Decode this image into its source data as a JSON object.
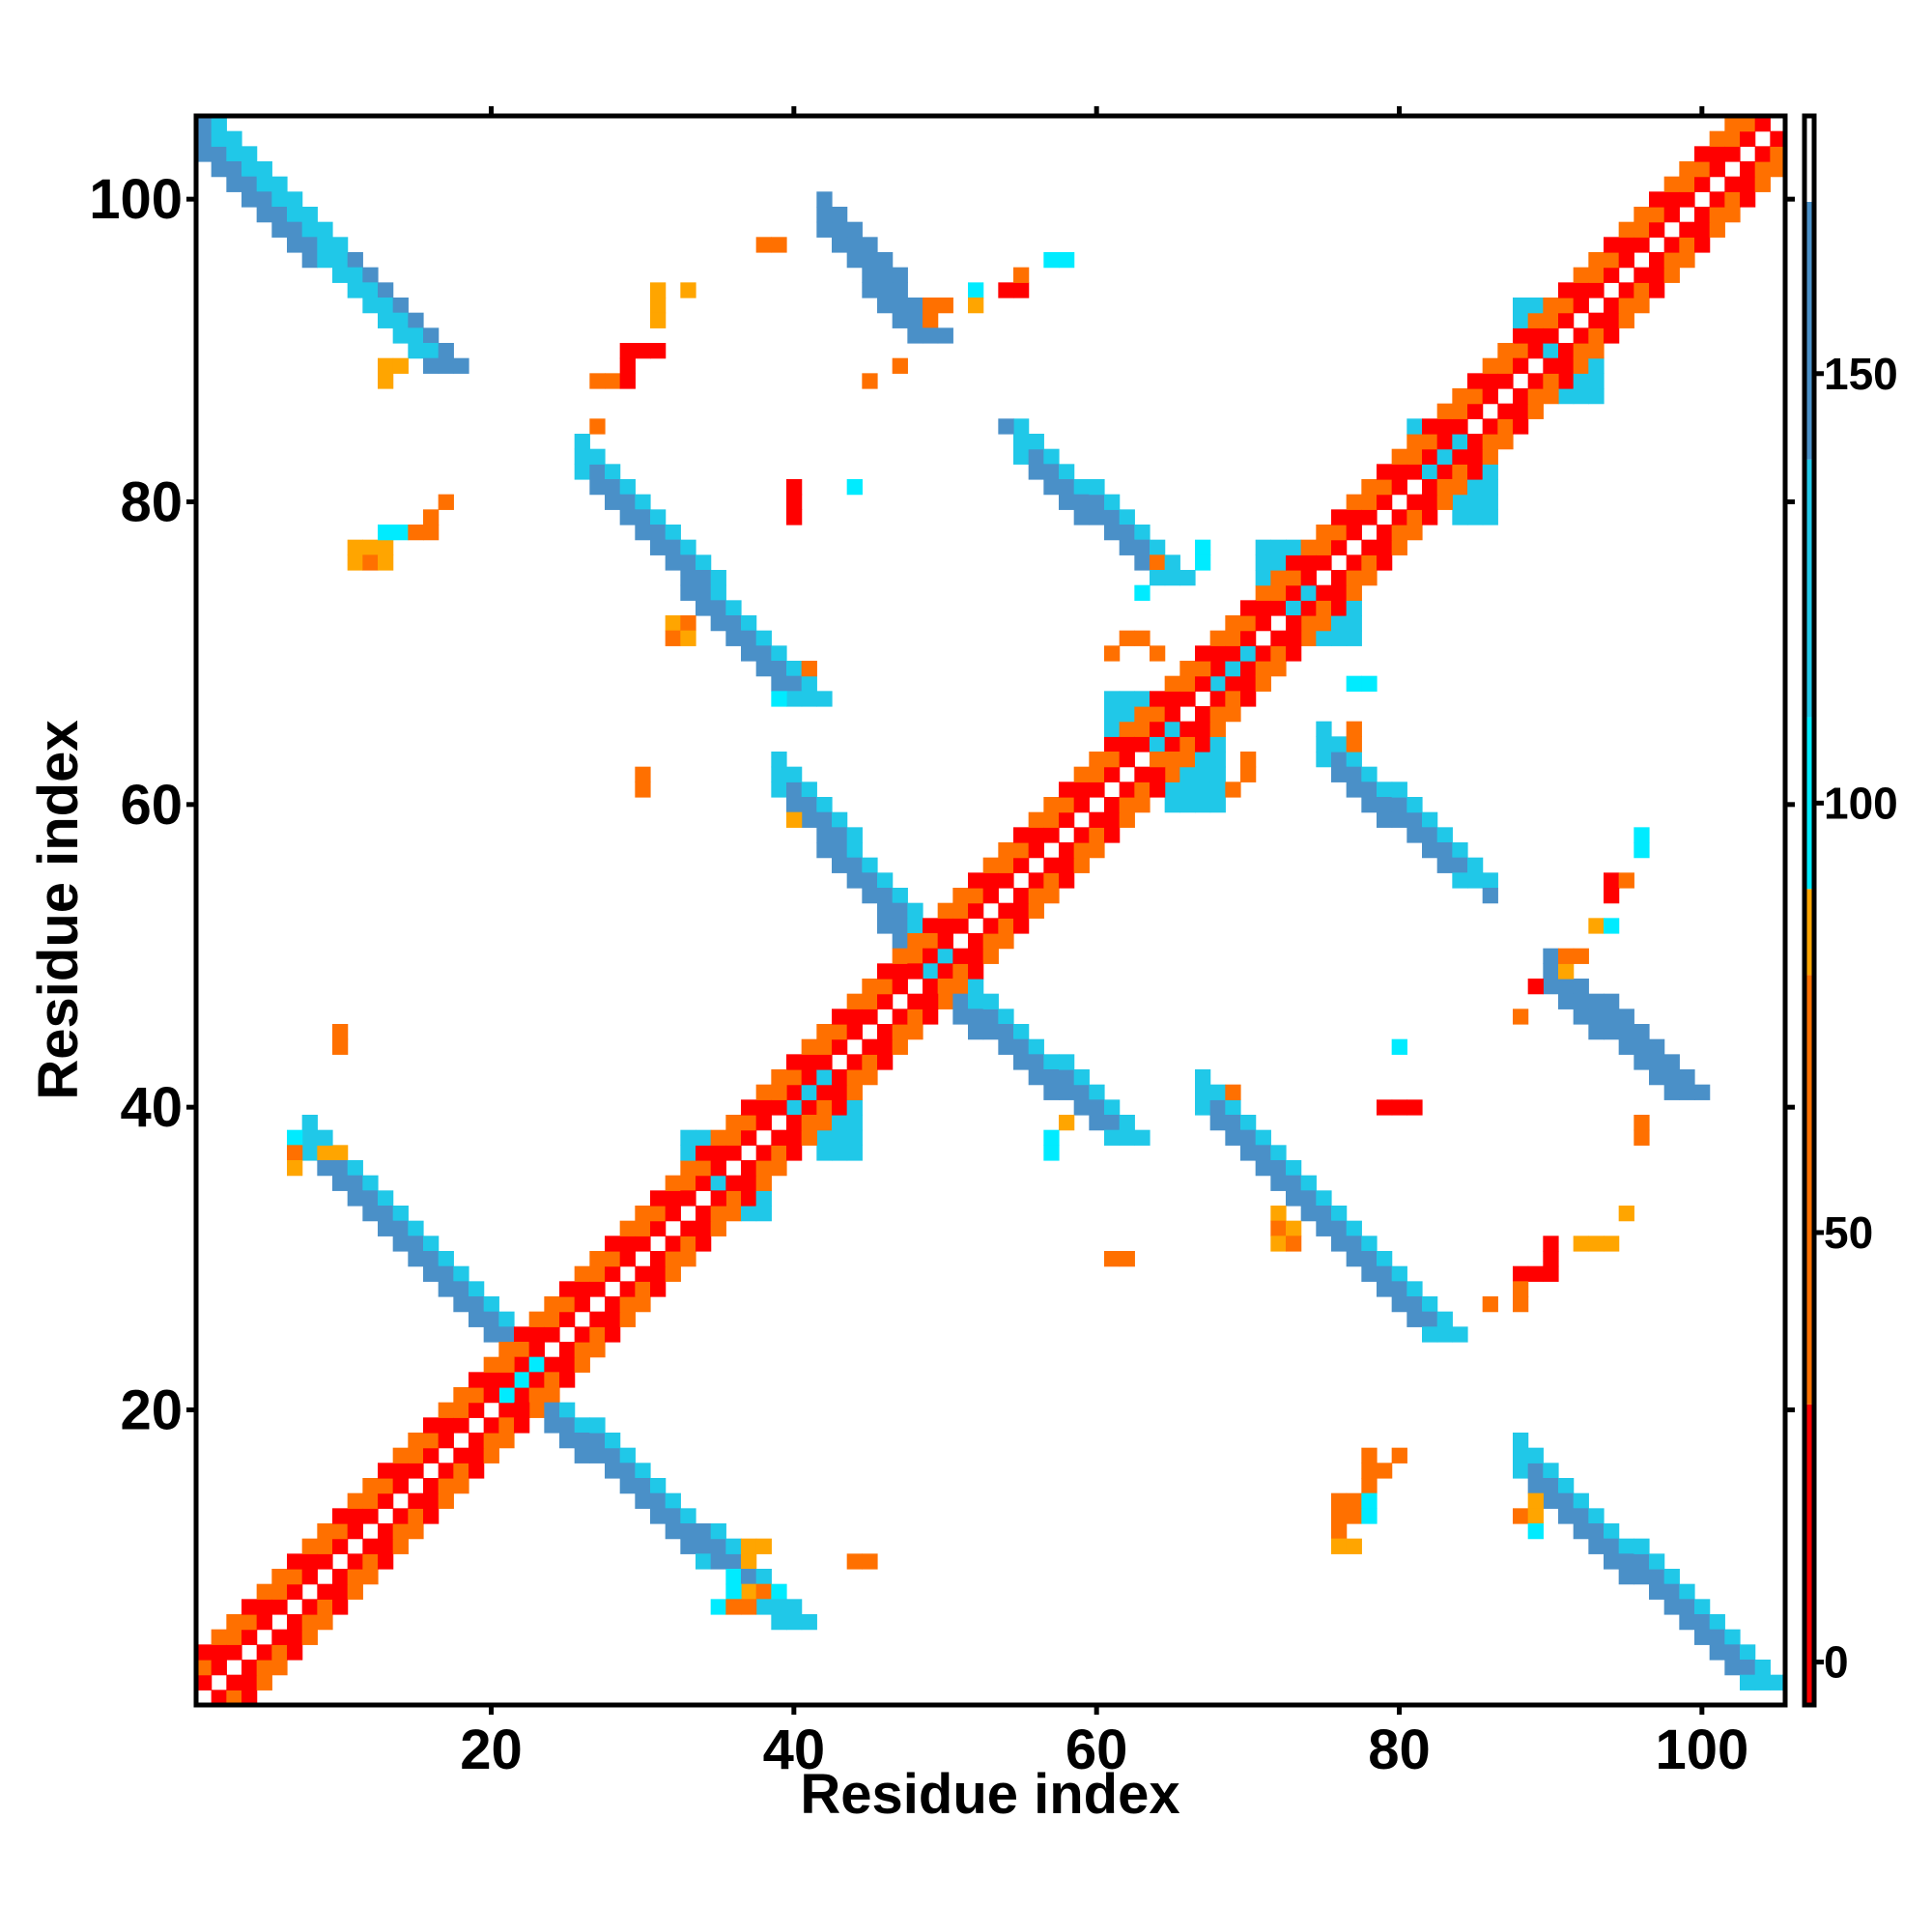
{
  "chart_data": {
    "type": "heatmap",
    "title": "",
    "xlabel": "Residue index",
    "ylabel": "Residue index",
    "xlim": [
      0.5,
      105.5
    ],
    "ylim": [
      0.5,
      105.5
    ],
    "x_ticks": [
      20,
      40,
      60,
      80,
      100
    ],
    "y_ticks": [
      20,
      40,
      60,
      80,
      100
    ],
    "colorbar": {
      "range": [
        -5,
        180
      ],
      "ticks": [
        0,
        50,
        100,
        150
      ],
      "bands": [
        {
          "from": -5,
          "to": 30,
          "color": "#ff0000"
        },
        {
          "from": 30,
          "to": 80,
          "color": "#ff7000"
        },
        {
          "from": 80,
          "to": 90,
          "color": "#ffa500"
        },
        {
          "from": 90,
          "to": 110,
          "color": "#00ebff"
        },
        {
          "from": 110,
          "to": 140,
          "color": "#20c8e8"
        },
        {
          "from": 140,
          "to": 170,
          "color": "#4a90c8"
        },
        {
          "from": 170,
          "to": 180,
          "color": "#ffffff"
        }
      ]
    },
    "colors": {
      "red": "#ff0000",
      "orange": "#ff7000",
      "amber": "#ffa500",
      "cyan": "#00ebff",
      "sky": "#20c8e8",
      "steel": "#4a90c8"
    },
    "diagonal_cells": {
      "description_colors": [
        "red",
        "orange"
      ],
      "span": [
        1,
        105
      ]
    },
    "bands": [
      {
        "x": [
          1,
          16
        ],
        "y": [
          103,
          89
        ],
        "color": "steel",
        "width": 3
      },
      {
        "x": [
          2,
          15
        ],
        "y": [
          104,
          90
        ],
        "color": "sky",
        "width": 2
      },
      {
        "x": [
          8,
          22
        ],
        "y": [
          37,
          23
        ],
        "color": "sky",
        "width": 3
      },
      {
        "x": [
          9,
          21
        ],
        "y": [
          36,
          24
        ],
        "color": "steel",
        "width": 2
      },
      {
        "x": [
          22,
          39
        ],
        "y": [
          21,
          6
        ],
        "color": "sky",
        "width": 3
      },
      {
        "x": [
          23,
          37
        ],
        "y": [
          20,
          8
        ],
        "color": "steel",
        "width": 2
      },
      {
        "x": [
          26,
          40
        ],
        "y": [
          82,
          67
        ],
        "color": "sky",
        "width": 3
      },
      {
        "x": [
          27,
          39
        ],
        "y": [
          81,
          68
        ],
        "color": "steel",
        "width": 2
      },
      {
        "x": [
          39,
          49
        ],
        "y": [
          61,
          49
        ],
        "color": "sky",
        "width": 3
      },
      {
        "x": [
          40,
          48
        ],
        "y": [
          60,
          50
        ],
        "color": "steel",
        "width": 2
      },
      {
        "x": [
          49,
          61
        ],
        "y": [
          48,
          38
        ],
        "color": "sky",
        "width": 3
      },
      {
        "x": [
          50,
          60
        ],
        "y": [
          47,
          39
        ],
        "color": "steel",
        "width": 2
      },
      {
        "x": [
          42,
          48
        ],
        "y": [
          98,
          91
        ],
        "color": "steel",
        "width": 3
      },
      {
        "x": [
          55,
          64
        ],
        "y": [
          83,
          75
        ],
        "color": "sky",
        "width": 3
      },
      {
        "x": [
          56,
          63
        ],
        "y": [
          82,
          76
        ],
        "color": "steel",
        "width": 2
      },
      {
        "x": [
          67,
          82
        ],
        "y": [
          40,
          25
        ],
        "color": "sky",
        "width": 3
      },
      {
        "x": [
          68,
          81
        ],
        "y": [
          39,
          26
        ],
        "color": "steel",
        "width": 2
      },
      {
        "x": [
          75,
          84
        ],
        "y": [
          63,
          55
        ],
        "color": "sky",
        "width": 3
      },
      {
        "x": [
          76,
          83
        ],
        "y": [
          62,
          56
        ],
        "color": "steel",
        "width": 2
      },
      {
        "x": [
          90,
          98
        ],
        "y": [
          48,
          41
        ],
        "color": "steel",
        "width": 3
      },
      {
        "x": [
          88,
          103
        ],
        "y": [
          16,
          2
        ],
        "color": "sky",
        "width": 3
      },
      {
        "x": [
          89,
          102
        ],
        "y": [
          15,
          3
        ],
        "color": "steel",
        "width": 2
      }
    ],
    "patches": [
      {
        "x": [
          61,
          65
        ],
        "y": [
          67,
          64
        ],
        "color": "sky"
      },
      {
        "x": [
          65,
          68
        ],
        "y": [
          64,
          60
        ],
        "color": "sky"
      },
      {
        "x": [
          68,
          70
        ],
        "y": [
          71,
          68
        ],
        "color": "sky"
      },
      {
        "x": [
          71,
          73
        ],
        "y": [
          77,
          73
        ],
        "color": "sky"
      },
      {
        "x": [
          74,
          77
        ],
        "y": [
          74,
          71
        ],
        "color": "sky"
      },
      {
        "x": [
          81,
          84
        ],
        "y": [
          85,
          82
        ],
        "color": "sky"
      },
      {
        "x": [
          84,
          86
        ],
        "y": [
          82,
          79
        ],
        "color": "sky"
      },
      {
        "x": [
          88,
          90
        ],
        "y": [
          93,
          90
        ],
        "color": "sky"
      },
      {
        "x": [
          91,
          93
        ],
        "y": [
          90,
          87
        ],
        "color": "sky"
      },
      {
        "x": [
          40,
          42
        ],
        "y": [
          43,
          40
        ],
        "color": "sky"
      },
      {
        "x": [
          42,
          44
        ],
        "y": [
          40,
          37
        ],
        "color": "sky"
      },
      {
        "x": [
          33,
          35
        ],
        "y": [
          38,
          35
        ],
        "color": "sky"
      },
      {
        "x": [
          36,
          38
        ],
        "y": [
          35,
          33
        ],
        "color": "sky"
      },
      {
        "x": [
          21,
          23
        ],
        "y": [
          23,
          20
        ],
        "color": "cyan"
      }
    ],
    "scatter_cells": [
      {
        "x": 38,
        "y": 97,
        "color": "orange"
      },
      {
        "x": 39,
        "y": 97,
        "color": "orange"
      },
      {
        "x": 31,
        "y": 94,
        "color": "amber"
      },
      {
        "x": 31,
        "y": 93,
        "color": "amber"
      },
      {
        "x": 31,
        "y": 92,
        "color": "amber"
      },
      {
        "x": 33,
        "y": 94,
        "color": "amber"
      },
      {
        "x": 29,
        "y": 90,
        "color": "red"
      },
      {
        "x": 30,
        "y": 90,
        "color": "red"
      },
      {
        "x": 31,
        "y": 90,
        "color": "red"
      },
      {
        "x": 29,
        "y": 89,
        "color": "red"
      },
      {
        "x": 27,
        "y": 88,
        "color": "orange"
      },
      {
        "x": 28,
        "y": 88,
        "color": "orange"
      },
      {
        "x": 29,
        "y": 88,
        "color": "red"
      },
      {
        "x": 27,
        "y": 85,
        "color": "orange"
      },
      {
        "x": 49,
        "y": 93,
        "color": "orange"
      },
      {
        "x": 50,
        "y": 93,
        "color": "orange"
      },
      {
        "x": 49,
        "y": 92,
        "color": "orange"
      },
      {
        "x": 52,
        "y": 94,
        "color": "cyan"
      },
      {
        "x": 52,
        "y": 93,
        "color": "amber"
      },
      {
        "x": 54,
        "y": 94,
        "color": "red"
      },
      {
        "x": 55,
        "y": 94,
        "color": "red"
      },
      {
        "x": 55,
        "y": 95,
        "color": "orange"
      },
      {
        "x": 57,
        "y": 96,
        "color": "cyan"
      },
      {
        "x": 58,
        "y": 96,
        "color": "cyan"
      },
      {
        "x": 47,
        "y": 89,
        "color": "orange"
      },
      {
        "x": 45,
        "y": 88,
        "color": "orange"
      },
      {
        "x": 54,
        "y": 85,
        "color": "steel"
      },
      {
        "x": 40,
        "y": 81,
        "color": "red"
      },
      {
        "x": 40,
        "y": 80,
        "color": "red"
      },
      {
        "x": 40,
        "y": 79,
        "color": "red"
      },
      {
        "x": 44,
        "y": 81,
        "color": "cyan"
      },
      {
        "x": 11,
        "y": 77,
        "color": "amber"
      },
      {
        "x": 12,
        "y": 77,
        "color": "amber"
      },
      {
        "x": 13,
        "y": 77,
        "color": "amber"
      },
      {
        "x": 11,
        "y": 76,
        "color": "amber"
      },
      {
        "x": 12,
        "y": 76,
        "color": "orange"
      },
      {
        "x": 13,
        "y": 76,
        "color": "amber"
      },
      {
        "x": 13,
        "y": 78,
        "color": "cyan"
      },
      {
        "x": 14,
        "y": 78,
        "color": "cyan"
      },
      {
        "x": 15,
        "y": 78,
        "color": "orange"
      },
      {
        "x": 16,
        "y": 78,
        "color": "orange"
      },
      {
        "x": 16,
        "y": 79,
        "color": "orange"
      },
      {
        "x": 17,
        "y": 80,
        "color": "orange"
      },
      {
        "x": 13,
        "y": 89,
        "color": "amber"
      },
      {
        "x": 14,
        "y": 89,
        "color": "amber"
      },
      {
        "x": 13,
        "y": 88,
        "color": "amber"
      },
      {
        "x": 32,
        "y": 72,
        "color": "amber"
      },
      {
        "x": 33,
        "y": 72,
        "color": "orange"
      },
      {
        "x": 32,
        "y": 71,
        "color": "orange"
      },
      {
        "x": 33,
        "y": 71,
        "color": "amber"
      },
      {
        "x": 41,
        "y": 69,
        "color": "orange"
      },
      {
        "x": 39,
        "y": 67,
        "color": "cyan"
      },
      {
        "x": 30,
        "y": 62,
        "color": "orange"
      },
      {
        "x": 30,
        "y": 61,
        "color": "orange"
      },
      {
        "x": 40,
        "y": 59,
        "color": "amber"
      },
      {
        "x": 10,
        "y": 45,
        "color": "orange"
      },
      {
        "x": 10,
        "y": 44,
        "color": "orange"
      },
      {
        "x": 7,
        "y": 38,
        "color": "cyan"
      },
      {
        "x": 9,
        "y": 37,
        "color": "amber"
      },
      {
        "x": 10,
        "y": 37,
        "color": "amber"
      },
      {
        "x": 7,
        "y": 37,
        "color": "orange"
      },
      {
        "x": 7,
        "y": 36,
        "color": "amber"
      },
      {
        "x": 62,
        "y": 71,
        "color": "orange"
      },
      {
        "x": 63,
        "y": 71,
        "color": "orange"
      },
      {
        "x": 64,
        "y": 70,
        "color": "orange"
      },
      {
        "x": 61,
        "y": 70,
        "color": "orange"
      },
      {
        "x": 64,
        "y": 76,
        "color": "orange"
      },
      {
        "x": 63,
        "y": 74,
        "color": "cyan"
      },
      {
        "x": 67,
        "y": 77,
        "color": "cyan"
      },
      {
        "x": 67,
        "y": 76,
        "color": "cyan"
      },
      {
        "x": 77,
        "y": 68,
        "color": "cyan"
      },
      {
        "x": 78,
        "y": 68,
        "color": "cyan"
      },
      {
        "x": 77,
        "y": 65,
        "color": "orange"
      },
      {
        "x": 77,
        "y": 64,
        "color": "orange"
      },
      {
        "x": 70,
        "y": 63,
        "color": "orange"
      },
      {
        "x": 70,
        "y": 62,
        "color": "orange"
      },
      {
        "x": 69,
        "y": 61,
        "color": "orange"
      },
      {
        "x": 64,
        "y": 63,
        "color": "orange"
      },
      {
        "x": 96,
        "y": 58,
        "color": "cyan"
      },
      {
        "x": 96,
        "y": 57,
        "color": "cyan"
      },
      {
        "x": 94,
        "y": 55,
        "color": "red"
      },
      {
        "x": 95,
        "y": 55,
        "color": "orange"
      },
      {
        "x": 94,
        "y": 54,
        "color": "red"
      },
      {
        "x": 93,
        "y": 52,
        "color": "amber"
      },
      {
        "x": 94,
        "y": 52,
        "color": "cyan"
      },
      {
        "x": 91,
        "y": 50,
        "color": "orange"
      },
      {
        "x": 92,
        "y": 50,
        "color": "orange"
      },
      {
        "x": 91,
        "y": 49,
        "color": "amber"
      },
      {
        "x": 89,
        "y": 48,
        "color": "red"
      },
      {
        "x": 88,
        "y": 46,
        "color": "orange"
      },
      {
        "x": 86,
        "y": 54,
        "color": "steel"
      },
      {
        "x": 80,
        "y": 44,
        "color": "cyan"
      },
      {
        "x": 79,
        "y": 40,
        "color": "red"
      },
      {
        "x": 80,
        "y": 40,
        "color": "red"
      },
      {
        "x": 81,
        "y": 40,
        "color": "red"
      },
      {
        "x": 69,
        "y": 41,
        "color": "orange"
      },
      {
        "x": 58,
        "y": 39,
        "color": "amber"
      },
      {
        "x": 57,
        "y": 38,
        "color": "cyan"
      },
      {
        "x": 57,
        "y": 37,
        "color": "cyan"
      },
      {
        "x": 72,
        "y": 33,
        "color": "amber"
      },
      {
        "x": 72,
        "y": 32,
        "color": "orange"
      },
      {
        "x": 73,
        "y": 32,
        "color": "amber"
      },
      {
        "x": 72,
        "y": 31,
        "color": "amber"
      },
      {
        "x": 73,
        "y": 31,
        "color": "orange"
      },
      {
        "x": 61,
        "y": 30,
        "color": "orange"
      },
      {
        "x": 62,
        "y": 30,
        "color": "orange"
      },
      {
        "x": 96,
        "y": 39,
        "color": "orange"
      },
      {
        "x": 96,
        "y": 38,
        "color": "orange"
      },
      {
        "x": 95,
        "y": 33,
        "color": "amber"
      },
      {
        "x": 92,
        "y": 31,
        "color": "amber"
      },
      {
        "x": 93,
        "y": 31,
        "color": "amber"
      },
      {
        "x": 94,
        "y": 31,
        "color": "amber"
      },
      {
        "x": 90,
        "y": 31,
        "color": "red"
      },
      {
        "x": 88,
        "y": 29,
        "color": "red"
      },
      {
        "x": 89,
        "y": 29,
        "color": "red"
      },
      {
        "x": 90,
        "y": 30,
        "color": "red"
      },
      {
        "x": 90,
        "y": 29,
        "color": "red"
      },
      {
        "x": 88,
        "y": 28,
        "color": "orange"
      },
      {
        "x": 88,
        "y": 27,
        "color": "orange"
      },
      {
        "x": 86,
        "y": 27,
        "color": "orange"
      },
      {
        "x": 78,
        "y": 17,
        "color": "orange"
      },
      {
        "x": 80,
        "y": 17,
        "color": "orange"
      },
      {
        "x": 78,
        "y": 16,
        "color": "orange"
      },
      {
        "x": 79,
        "y": 16,
        "color": "orange"
      },
      {
        "x": 78,
        "y": 15,
        "color": "orange"
      },
      {
        "x": 76,
        "y": 14,
        "color": "orange"
      },
      {
        "x": 77,
        "y": 14,
        "color": "orange"
      },
      {
        "x": 78,
        "y": 14,
        "color": "cyan"
      },
      {
        "x": 76,
        "y": 13,
        "color": "orange"
      },
      {
        "x": 77,
        "y": 13,
        "color": "orange"
      },
      {
        "x": 78,
        "y": 13,
        "color": "cyan"
      },
      {
        "x": 76,
        "y": 12,
        "color": "orange"
      },
      {
        "x": 76,
        "y": 11,
        "color": "amber"
      },
      {
        "x": 77,
        "y": 11,
        "color": "amber"
      },
      {
        "x": 88,
        "y": 13,
        "color": "orange"
      },
      {
        "x": 89,
        "y": 13,
        "color": "amber"
      },
      {
        "x": 89,
        "y": 14,
        "color": "amber"
      },
      {
        "x": 89,
        "y": 12,
        "color": "cyan"
      },
      {
        "x": 44,
        "y": 10,
        "color": "orange"
      },
      {
        "x": 45,
        "y": 10,
        "color": "orange"
      },
      {
        "x": 37,
        "y": 11,
        "color": "amber"
      },
      {
        "x": 38,
        "y": 11,
        "color": "amber"
      },
      {
        "x": 37,
        "y": 10,
        "color": "amber"
      },
      {
        "x": 36,
        "y": 9,
        "color": "cyan"
      },
      {
        "x": 36,
        "y": 8,
        "color": "cyan"
      },
      {
        "x": 37,
        "y": 8,
        "color": "amber"
      },
      {
        "x": 38,
        "y": 8,
        "color": "orange"
      },
      {
        "x": 39,
        "y": 8,
        "color": "cyan"
      },
      {
        "x": 35,
        "y": 7,
        "color": "cyan"
      },
      {
        "x": 36,
        "y": 7,
        "color": "orange"
      },
      {
        "x": 37,
        "y": 7,
        "color": "orange"
      }
    ]
  }
}
